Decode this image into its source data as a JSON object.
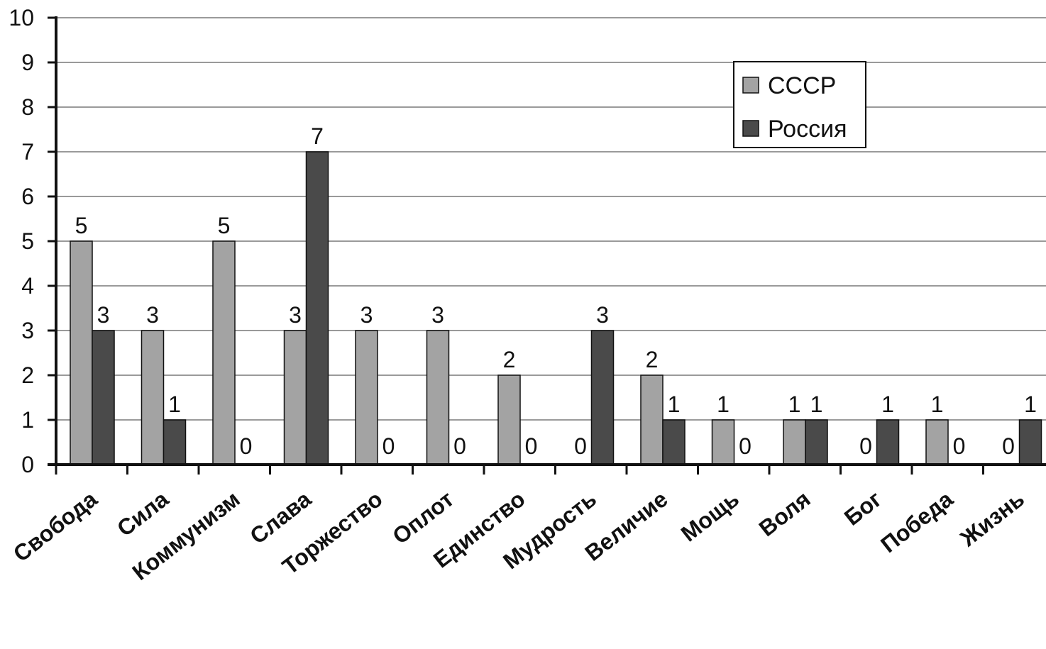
{
  "chart_data": {
    "type": "bar",
    "categories": [
      "Свобода",
      "Сила",
      "Коммунизм",
      "Слава",
      "Торжество",
      "Оплот",
      "Единство",
      "Мудрость",
      "Величие",
      "Мощь",
      "Воля",
      "Бог",
      "Победа",
      "Жизнь"
    ],
    "series": [
      {
        "name": "СССР",
        "values": [
          5,
          3,
          5,
          3,
          3,
          3,
          2,
          0,
          2,
          1,
          1,
          0,
          1,
          0
        ],
        "color": "#a3a3a3"
      },
      {
        "name": "Россия",
        "values": [
          3,
          1,
          0,
          7,
          0,
          0,
          0,
          3,
          1,
          0,
          1,
          1,
          0,
          1
        ],
        "color": "#4a4a4a"
      }
    ],
    "ylim": [
      0,
      10
    ],
    "yticks": [
      "0",
      "1",
      "2",
      "3",
      "4",
      "5",
      "6",
      "7",
      "8",
      "9",
      "10"
    ],
    "grid": true,
    "legend": "top-right",
    "data_labels": true
  }
}
